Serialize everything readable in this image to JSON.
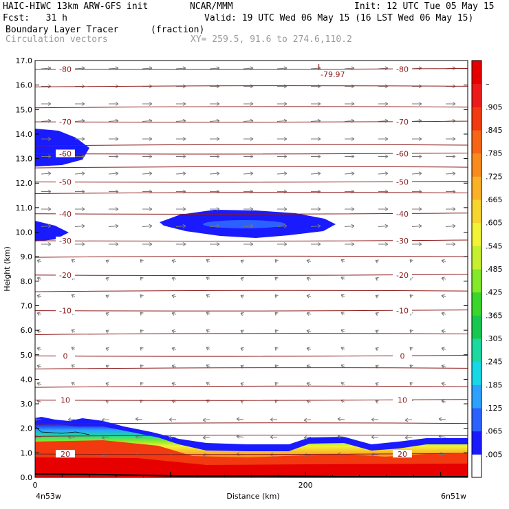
{
  "header": {
    "model": "HAIC-HIWC 13km ARW-GFS init",
    "org": "NCAR/MMM",
    "init": "Init: 12 UTC Tue 05 May 15",
    "fcst": "Fcst:   31 h",
    "valid": "Valid: 19 UTC Wed 06 May 15 (16 LST Wed 06 May 15)",
    "field": "Boundary Layer Tracer",
    "units": "(fraction)",
    "vectors": "Circulation vectors",
    "xy": "XY= 259.5, 91.6 to 274.6,110.2"
  },
  "chart_data": {
    "type": "heatmap",
    "xlabel": "Distance (km)",
    "ylabel": "Height (km)",
    "xlim": [
      0,
      320
    ],
    "ylim": [
      0,
      17
    ],
    "x_end_labels": [
      "4n53w",
      "6n51w"
    ],
    "x_ticks": [
      0,
      200
    ],
    "y_ticks": [
      "0.0",
      "1.0",
      "2.0",
      "3.0",
      "4.0",
      "5.0",
      "6.0",
      "7.0",
      "8.0",
      "9.0",
      "10.0",
      "11.0",
      "12.0",
      "13.0",
      "14.0",
      "15.0",
      "16.0",
      "17.0"
    ],
    "colorbar": {
      "labels": [
        ".005",
        ".065",
        ".125",
        ".185",
        ".245",
        ".305",
        ".365",
        ".425",
        ".485",
        ".545",
        ".605",
        ".665",
        ".725",
        ".785",
        ".845",
        ".905",
        "–"
      ],
      "colors": [
        "#ffffff",
        "#1a1aff",
        "#2b62ff",
        "#2ea0ff",
        "#18d8e8",
        "#1cd9a0",
        "#17c84f",
        "#3ad62b",
        "#84e82b",
        "#c6f02f",
        "#f2f237",
        "#f8d42e",
        "#fbb126",
        "#f98b1e",
        "#f76516",
        "#f2390f",
        "#ed1a1a",
        "#e60000"
      ]
    },
    "temperature_contours": [
      {
        "label": "0",
        "height_km": 4.95
      },
      {
        "label": "-10",
        "height_km": 6.8
      },
      {
        "label": "-20",
        "height_km": 8.25
      },
      {
        "label": "-30",
        "height_km": 9.65
      },
      {
        "label": "-40",
        "height_km": 10.75
      },
      {
        "label": "-50",
        "height_km": 12.05
      },
      {
        "label": "-60",
        "height_km": 13.2
      },
      {
        "label": "-70",
        "height_km": 14.5
      },
      {
        "label": "-80",
        "height_km": 16.65
      },
      {
        "label": "10",
        "height_km": 3.15
      },
      {
        "label": "20",
        "height_km": 0.95
      }
    ],
    "min_marker": {
      "label": "L",
      "value": "-79.97"
    }
  }
}
